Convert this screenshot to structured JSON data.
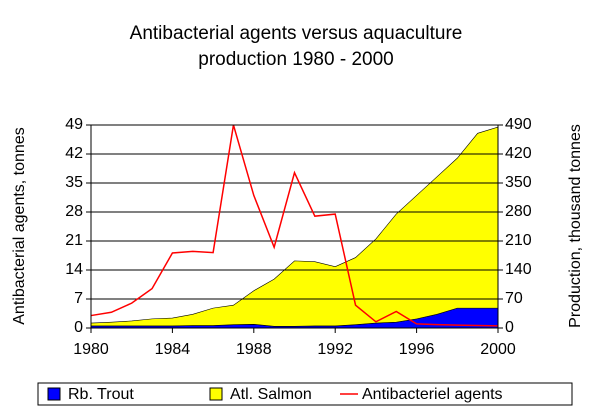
{
  "chart_data": {
    "type": "stacked-area-line",
    "title": [
      "Antibacterial agents versus aquaculture",
      "production  1980 - 2000"
    ],
    "ylabel": "Antibacterial agents, tonnes",
    "y2label": "Production, thousand tonnes",
    "x": [
      1980,
      1981,
      1982,
      1983,
      1984,
      1985,
      1986,
      1987,
      1988,
      1989,
      1990,
      1991,
      1992,
      1993,
      1994,
      1995,
      1996,
      1997,
      1998,
      1999,
      2000
    ],
    "xlim": [
      1980,
      2000
    ],
    "xticks": [
      1980,
      1984,
      1988,
      1992,
      1996,
      2000
    ],
    "ylim": [
      0,
      49
    ],
    "yticks": [
      0,
      7,
      14,
      21,
      28,
      35,
      42,
      49
    ],
    "y2lim": [
      0,
      490
    ],
    "y2ticks": [
      0,
      70,
      140,
      210,
      280,
      350,
      420,
      490
    ],
    "grid": true,
    "legend": "bottom",
    "series": [
      {
        "name": "Rb. Trout",
        "color": "#0000ff",
        "kind": "area",
        "axis": "y2",
        "values": [
          5,
          5,
          5,
          5,
          5,
          6,
          6,
          8,
          9,
          4,
          4,
          5,
          5,
          8,
          12,
          14,
          22,
          33,
          48,
          48,
          48
        ]
      },
      {
        "name": "Atl. Salmon",
        "color": "#ffff00",
        "kind": "area",
        "axis": "y2",
        "values": [
          7,
          9,
          12,
          17,
          19,
          27,
          42,
          47,
          81,
          114,
          158,
          155,
          143,
          162,
          203,
          261,
          298,
          332,
          362,
          422,
          437
        ]
      },
      {
        "name": "Antibacteriel agents",
        "color": "#ff0000",
        "kind": "line",
        "axis": "y",
        "values": [
          3,
          3.8,
          6,
          9.5,
          18.1,
          18.5,
          18.2,
          49,
          32,
          19.5,
          37.5,
          27,
          27.5,
          5.5,
          1.5,
          4,
          1,
          0.8,
          0.7,
          0.6,
          0.5
        ]
      }
    ]
  }
}
